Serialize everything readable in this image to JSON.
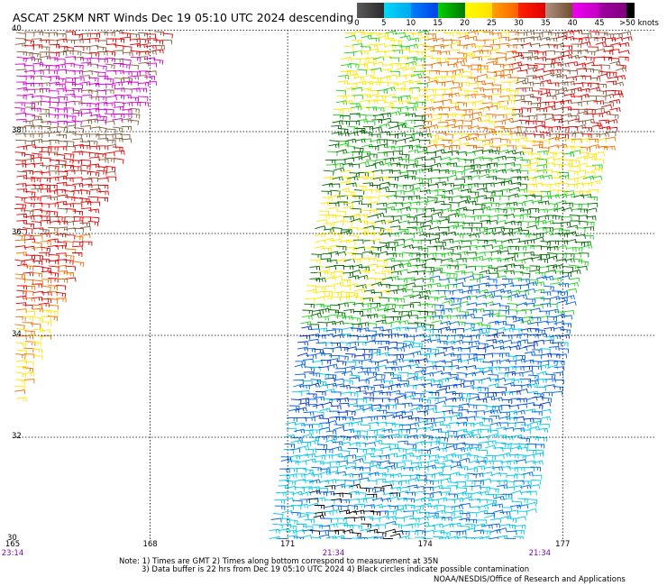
{
  "title": "ASCAT 25KM NRT Winds Dec 19 05:10 UTC 2024 descending",
  "scale": {
    "labels": [
      "0",
      "5",
      "10",
      "15",
      "20",
      "25",
      "30",
      "35",
      "40",
      "45"
    ],
    "over_label": ">50 knots",
    "colors": [
      [
        "#5a5a5a",
        "#2a2a2a"
      ],
      [
        "#00d8f8",
        "#00a8f0"
      ],
      [
        "#0080f8",
        "#0040e8"
      ],
      [
        "#00d000",
        "#007800"
      ],
      [
        "#ffff00",
        "#ffe000"
      ],
      [
        "#ffa000",
        "#ff6000"
      ],
      [
        "#ff2000",
        "#e00000"
      ],
      [
        "#b09080",
        "#705030"
      ],
      [
        "#f000f0",
        "#c000c0"
      ],
      [
        "#a000a0",
        "#800080"
      ],
      [
        "#000000",
        "#000000"
      ]
    ]
  },
  "axes": {
    "lat": [
      "40",
      "38",
      "36",
      "34",
      "32",
      "30"
    ],
    "lon": [
      "165",
      "168",
      "171",
      "174",
      "177"
    ],
    "lat_range": [
      30,
      40
    ],
    "lon_range": [
      165,
      179
    ]
  },
  "pass_times": [
    {
      "label": "23:14",
      "lon": 165
    },
    {
      "label": "21:34",
      "lon": 172
    },
    {
      "label": "21:34",
      "lon": 176.5
    }
  ],
  "notes": {
    "line1": "Note: 1) Times are GMT 2) Times along bottom correspond to measurement at 35N",
    "line2": "3) Data buffer is 22 hrs from Dec 19 05:10 UTC 2024 4) Black circles indicate possible contamination",
    "credit": "NOAA/NESDIS/Office of Research and Applications"
  },
  "wind_colors": {
    "calm_black": "#000000",
    "cyan": "#00c8e8",
    "blue": "#0060e0",
    "dark_blue": "#0030c0",
    "green": "#20d020",
    "dark_green": "#006800",
    "yellow": "#ffe800",
    "orange": "#f07000",
    "red": "#e00000",
    "brown": "#806040",
    "magenta": "#d000d0"
  }
}
